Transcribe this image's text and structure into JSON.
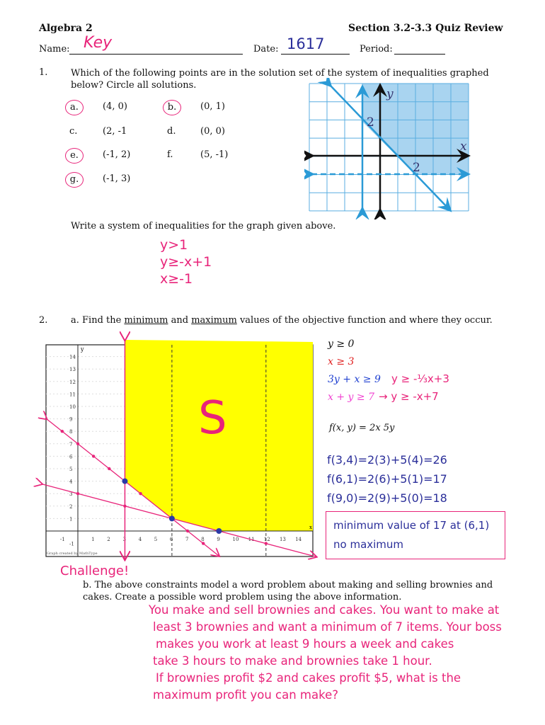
{
  "header": {
    "course": "Algebra 2",
    "section": "Section 3.2-3.3 Quiz Review",
    "name_label": "Name:",
    "name_value": "Key",
    "date_label": "Date:",
    "date_value": "1617",
    "period_label": "Period:"
  },
  "q1": {
    "number": "1.",
    "prompt": "Which of the following points are in the solution set of the system of inequalities graphed below? Circle all solutions.",
    "options": [
      {
        "letter": "a.",
        "value": "(4, 0)",
        "circled": true
      },
      {
        "letter": "b.",
        "value": "(0, 1)",
        "circled": true
      },
      {
        "letter": "c.",
        "value": "(2, -1",
        "circled": false
      },
      {
        "letter": "d.",
        "value": "(0, 0)",
        "circled": false
      },
      {
        "letter": "e.",
        "value": "(-1, 2)",
        "circled": true
      },
      {
        "letter": "f.",
        "value": "(5, -1)",
        "circled": false
      },
      {
        "letter": "g.",
        "value": "(-1, 3)",
        "circled": true
      }
    ],
    "graph": {
      "x_label": "x",
      "y_label": "y",
      "tick_x": "2",
      "tick_y": "2",
      "shade_color": "#a9d4f0",
      "line_color": "#2a9ad6"
    },
    "write_prompt": "Write a system of inequalities for the graph given above.",
    "answers": [
      "y>1",
      "y≥-x+1",
      "x≥-1"
    ]
  },
  "q2": {
    "number": "2.",
    "prompt_pre": "a. Find the ",
    "min": "minimum",
    "and": " and ",
    "max": "maximum",
    "prompt_post": " values of the objective function and where they occur.",
    "graph": {
      "y_label": "y",
      "x_label": "x",
      "x_ticks": [
        "-1",
        "1",
        "2",
        "3",
        "4",
        "5",
        "6",
        "7",
        "8",
        "9",
        "10",
        "11",
        "12",
        "13",
        "14"
      ],
      "y_ticks": [
        "-1",
        "1",
        "2",
        "3",
        "4",
        "5",
        "6",
        "7",
        "8",
        "9",
        "10",
        "11",
        "12",
        "13",
        "14"
      ],
      "region_label": "S",
      "shade_color": "#ffff00",
      "credit": "Graph created by MathType"
    },
    "constraints": [
      {
        "text": "y ≥ 0",
        "color": "#111111"
      },
      {
        "text": "x ≥ 3",
        "color": "#e02020"
      },
      {
        "text": "3y + x ≥ 9",
        "color": "#1e3fd0",
        "note": "y ≥ -⅓x+3"
      },
      {
        "text": "x + y ≥ 7",
        "color": "#f040d0",
        "note": "→  y ≥ -x+7"
      }
    ],
    "objective": "f(x, y) = 2x  5y",
    "evaluations": [
      "f(3,4)=2(3)+5(4)=26",
      "f(6,1)=2(6)+5(1)=17",
      "f(9,0)=2(9)+5(0)=18"
    ],
    "result": [
      "minimum value of 17 at (6,1)",
      "no maximum"
    ],
    "challenge": "Challenge!",
    "b_prompt": "b. The above constraints model a word problem about making and selling brownies and cakes. Create a possible word problem using the above information.",
    "b_answer": [
      "You make and sell brownies and cakes. You want to make at",
      "least 3 brownies and want a minimum of 7 items. Your boss",
      "makes you work at least 9 hours a week and cakes",
      "take 3 hours to make and brownies take 1 hour.",
      "If brownies profit $2 and cakes profit $5, what is the",
      "maximum profit you can make?"
    ]
  }
}
